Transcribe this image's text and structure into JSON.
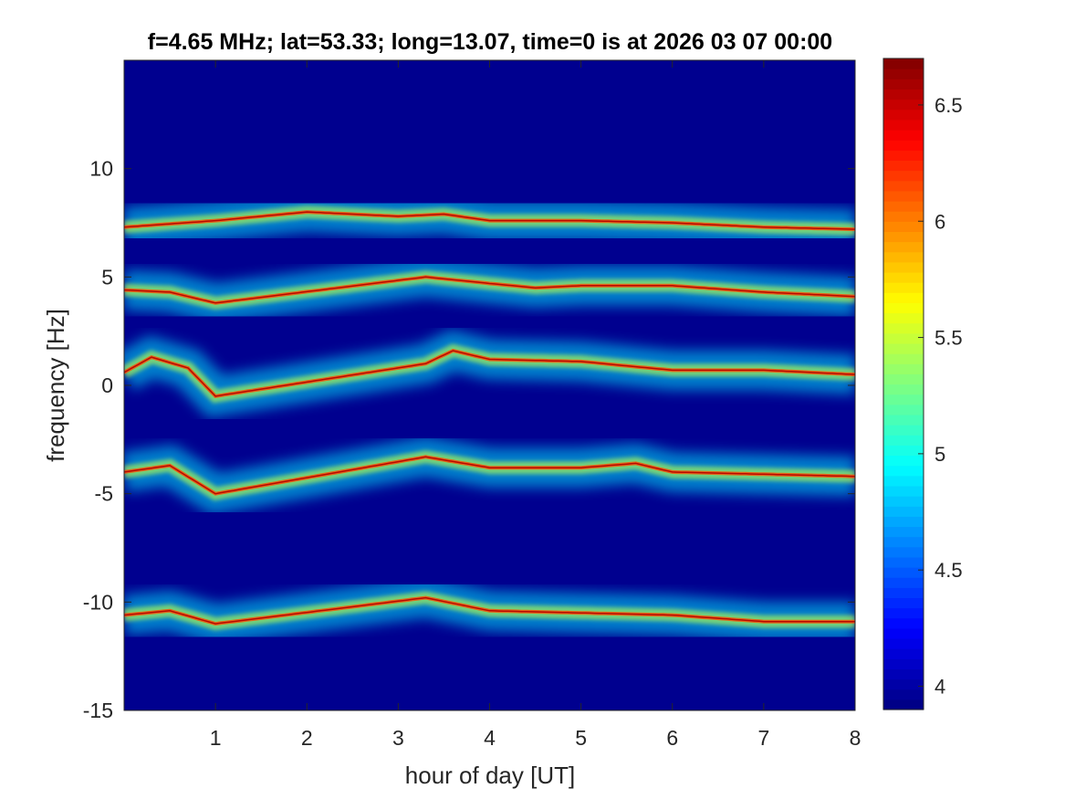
{
  "chart_data": {
    "type": "heatmap",
    "title": "f=4.65 MHz;  lat=53.33; long=13.07, time=0 is at 2026 03 07 00:00",
    "xlabel": "hour of day [UT]",
    "ylabel": "frequency [Hz]",
    "xlim": [
      0,
      8
    ],
    "ylim": [
      -15,
      15
    ],
    "xticks": [
      1,
      2,
      3,
      4,
      5,
      6,
      7,
      8
    ],
    "yticks": [
      -15,
      -10,
      -5,
      0,
      5,
      10
    ],
    "colormap": "jet",
    "clim": [
      3.9,
      6.7
    ],
    "colorbar_ticks": [
      4,
      4.5,
      5,
      5.5,
      6,
      6.5
    ],
    "background_color": "#00008f",
    "bands_description": "Doppler traces at approx. +7.2, +4.2, +0.5, -4.2 and -10.8 Hz",
    "bands": [
      {
        "offset_hz": 7.2,
        "points": [
          [
            0.0,
            7.3
          ],
          [
            1.0,
            7.6
          ],
          [
            2.0,
            8.0
          ],
          [
            3.0,
            7.8
          ],
          [
            3.5,
            7.9
          ],
          [
            4.0,
            7.6
          ],
          [
            5.0,
            7.6
          ],
          [
            6.0,
            7.5
          ],
          [
            7.0,
            7.3
          ],
          [
            8.0,
            7.2
          ]
        ]
      },
      {
        "offset_hz": 4.2,
        "points": [
          [
            0.0,
            4.4
          ],
          [
            0.5,
            4.3
          ],
          [
            1.0,
            3.8
          ],
          [
            3.3,
            5.0
          ],
          [
            4.0,
            4.7
          ],
          [
            4.5,
            4.5
          ],
          [
            5.0,
            4.6
          ],
          [
            6.0,
            4.6
          ],
          [
            7.0,
            4.3
          ],
          [
            8.0,
            4.1
          ]
        ]
      },
      {
        "offset_hz": 0.5,
        "points": [
          [
            0.0,
            0.6
          ],
          [
            0.3,
            1.3
          ],
          [
            0.7,
            0.8
          ],
          [
            1.0,
            -0.5
          ],
          [
            3.3,
            1.0
          ],
          [
            3.6,
            1.6
          ],
          [
            4.0,
            1.2
          ],
          [
            5.0,
            1.1
          ],
          [
            6.0,
            0.7
          ],
          [
            7.0,
            0.7
          ],
          [
            8.0,
            0.5
          ]
        ]
      },
      {
        "offset_hz": -4.2,
        "points": [
          [
            0.0,
            -4.0
          ],
          [
            0.5,
            -3.7
          ],
          [
            1.0,
            -5.0
          ],
          [
            3.3,
            -3.3
          ],
          [
            4.0,
            -3.8
          ],
          [
            5.0,
            -3.8
          ],
          [
            5.6,
            -3.6
          ],
          [
            6.0,
            -4.0
          ],
          [
            7.0,
            -4.1
          ],
          [
            8.0,
            -4.2
          ]
        ]
      },
      {
        "offset_hz": -10.8,
        "points": [
          [
            0.0,
            -10.6
          ],
          [
            0.5,
            -10.4
          ],
          [
            1.0,
            -11.0
          ],
          [
            3.3,
            -9.8
          ],
          [
            4.0,
            -10.4
          ],
          [
            5.0,
            -10.5
          ],
          [
            6.0,
            -10.6
          ],
          [
            7.0,
            -10.9
          ],
          [
            8.0,
            -10.9
          ]
        ]
      }
    ]
  }
}
